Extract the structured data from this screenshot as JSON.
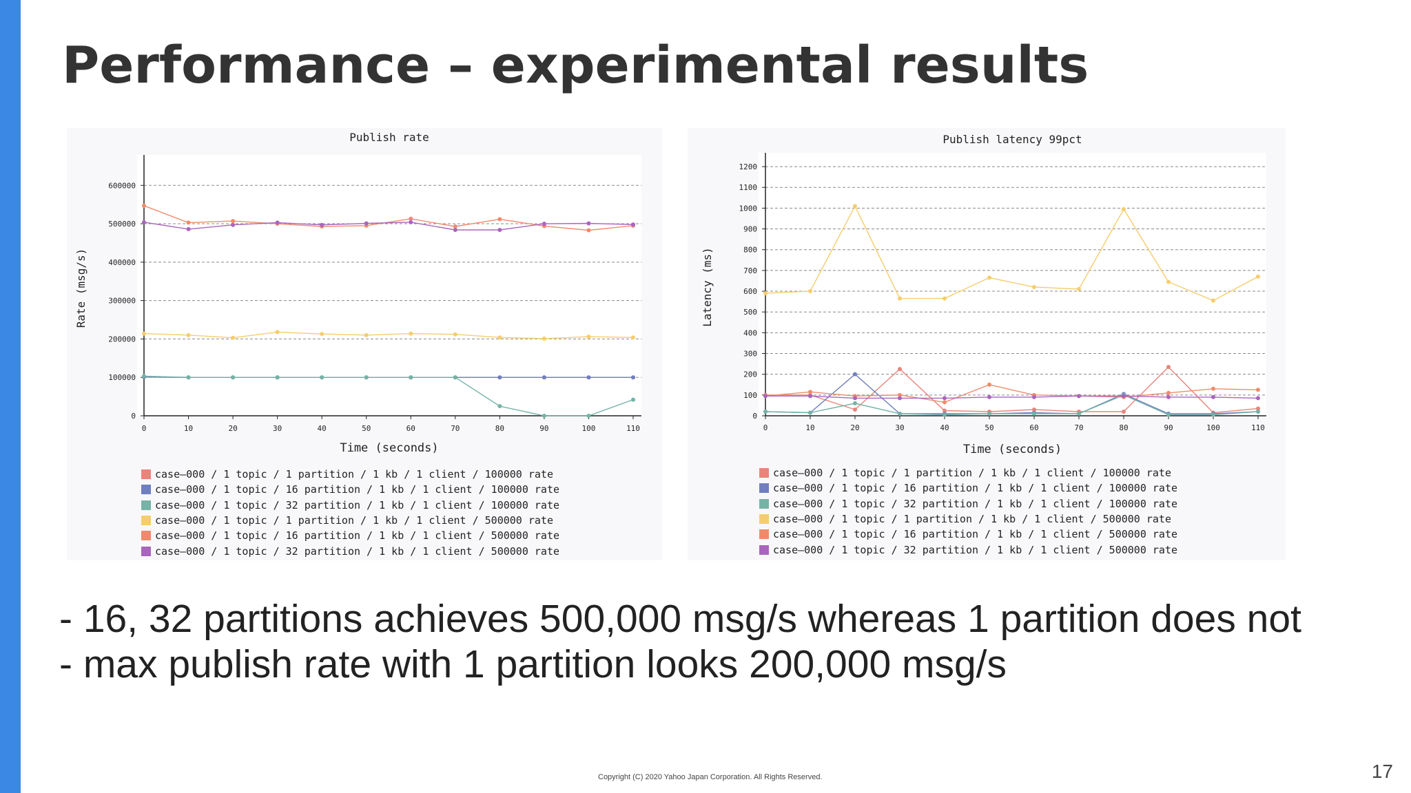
{
  "slide": {
    "title": "Performance – experimental results",
    "bullets": [
      "- 16, 32 partitions achieves 500,000 msg/s whereas 1 partition does not",
      "- max publish rate with 1 partition looks 200,000 msg/s"
    ],
    "copyright": "Copyright (C) 2020 Yahoo Japan Corporation. All Rights Reserved.",
    "page_number": "17"
  },
  "colors": {
    "accent_bar": "#3a88e3",
    "series": [
      "#e8847a",
      "#6f7fbf",
      "#74b3a6",
      "#f5cd6c",
      "#ef8b6a",
      "#a965bd"
    ]
  },
  "chart_data": [
    {
      "id": "left",
      "type": "line",
      "title": "Publish rate",
      "xlabel": "Time (seconds)",
      "ylabel": "Rate (msg/s)",
      "x": [
        0,
        10,
        20,
        30,
        40,
        50,
        60,
        70,
        80,
        90,
        100,
        110
      ],
      "xticks": [
        0,
        10,
        20,
        30,
        40,
        50,
        60,
        70,
        80,
        90,
        100,
        110
      ],
      "yticks": [
        0,
        100000,
        200000,
        300000,
        400000,
        500000,
        600000
      ],
      "ylim": [
        0,
        665000
      ],
      "grid": true,
      "series": [
        {
          "name": "case–000 / 1 topic / 1 partition / 1 kb / 1 client / 100000 rate",
          "values": [
            101000,
            100000,
            100000,
            100000,
            100000,
            100000,
            100000,
            100000,
            100000,
            100000,
            100000,
            100000
          ]
        },
        {
          "name": "case–000 / 1 topic / 16 partition / 1 kb / 1 client / 100000 rate",
          "values": [
            101000,
            100000,
            100000,
            100000,
            100000,
            100000,
            100000,
            100000,
            100000,
            100000,
            100000,
            100000
          ]
        },
        {
          "name": "case–000 / 1 topic / 32 partition / 1 kb / 1 client / 100000 rate",
          "values": [
            103000,
            100000,
            100000,
            100000,
            100000,
            100000,
            100000,
            100000,
            25000,
            0,
            0,
            42000
          ]
        },
        {
          "name": "case–000 / 1 topic / 1 partition / 1 kb / 1 client / 500000 rate",
          "values": [
            214000,
            210000,
            203000,
            218000,
            213000,
            210000,
            214000,
            212000,
            204000,
            201000,
            206000,
            204000
          ]
        },
        {
          "name": "case–000 / 1 topic / 16 partition / 1 kb / 1 client / 500000 rate",
          "values": [
            547000,
            503000,
            507000,
            500000,
            493000,
            495000,
            513000,
            493000,
            512000,
            494000,
            483000,
            495000
          ]
        },
        {
          "name": "case–000 / 1 topic / 32 partition / 1 kb / 1 client / 500000 rate",
          "values": [
            504000,
            486000,
            497000,
            503000,
            497000,
            501000,
            504000,
            484000,
            484000,
            500000,
            501000,
            498000
          ]
        }
      ]
    },
    {
      "id": "right",
      "type": "line",
      "title": "Publish latency 99pct",
      "xlabel": "Time (seconds)",
      "ylabel": "Latency (ms)",
      "x": [
        0,
        10,
        20,
        30,
        40,
        50,
        60,
        70,
        80,
        90,
        100,
        110
      ],
      "xticks": [
        0,
        10,
        20,
        30,
        40,
        50,
        60,
        70,
        80,
        90,
        100,
        110
      ],
      "yticks": [
        0,
        100,
        200,
        300,
        400,
        500,
        600,
        700,
        800,
        900,
        1000,
        1100,
        1200
      ],
      "ylim": [
        0,
        1240
      ],
      "grid": true,
      "series": [
        {
          "name": "case–000 / 1 topic / 1 partition / 1 kb / 1 client / 100000 rate",
          "values": [
            100,
            100,
            30,
            225,
            25,
            20,
            30,
            20,
            20,
            235,
            15,
            35
          ]
        },
        {
          "name": "case–000 / 1 topic / 16 partition / 1 kb / 1 client / 100000 rate",
          "values": [
            20,
            15,
            200,
            10,
            10,
            10,
            15,
            10,
            105,
            10,
            10,
            20
          ]
        },
        {
          "name": "case–000 / 1 topic / 32 partition / 1 kb / 1 client / 100000 rate",
          "values": [
            20,
            15,
            60,
            10,
            5,
            10,
            10,
            10,
            100,
            5,
            5,
            20
          ]
        },
        {
          "name": "case–000 / 1 topic / 1 partition / 1 kb / 1 client / 500000 rate",
          "values": [
            590,
            600,
            1010,
            565,
            565,
            665,
            620,
            610,
            995,
            645,
            555,
            670
          ]
        },
        {
          "name": "case–000 / 1 topic / 16 partition / 1 kb / 1 client / 500000 rate",
          "values": [
            95,
            115,
            95,
            100,
            65,
            150,
            100,
            95,
            90,
            110,
            130,
            125
          ]
        },
        {
          "name": "case–000 / 1 topic / 32 partition / 1 kb / 1 client / 500000 rate",
          "values": [
            95,
            95,
            85,
            85,
            85,
            90,
            90,
            95,
            95,
            90,
            90,
            85
          ]
        }
      ]
    }
  ]
}
